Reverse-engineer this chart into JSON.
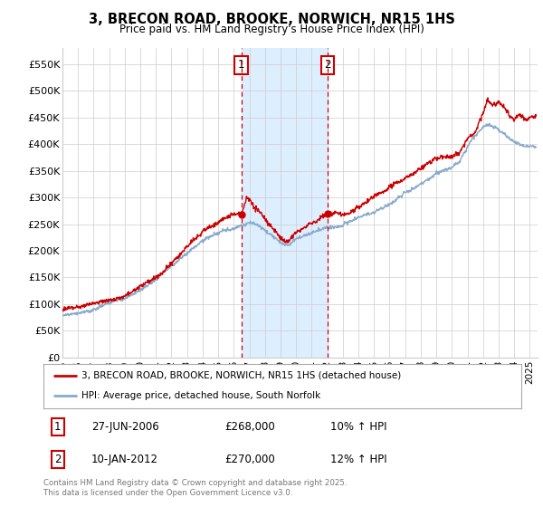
{
  "title": "3, BRECON ROAD, BROOKE, NORWICH, NR15 1HS",
  "subtitle": "Price paid vs. HM Land Registry's House Price Index (HPI)",
  "xlim_start": 1995.0,
  "xlim_end": 2025.5,
  "ylim": [
    0,
    580000
  ],
  "yticks": [
    0,
    50000,
    100000,
    150000,
    200000,
    250000,
    300000,
    350000,
    400000,
    450000,
    500000,
    550000
  ],
  "ytick_labels": [
    "£0",
    "£50K",
    "£100K",
    "£150K",
    "£200K",
    "£250K",
    "£300K",
    "£350K",
    "£400K",
    "£450K",
    "£500K",
    "£550K"
  ],
  "xtick_years": [
    1995,
    1996,
    1997,
    1998,
    1999,
    2000,
    2001,
    2002,
    2003,
    2004,
    2005,
    2006,
    2007,
    2008,
    2009,
    2010,
    2011,
    2012,
    2013,
    2014,
    2015,
    2016,
    2017,
    2018,
    2019,
    2020,
    2021,
    2022,
    2023,
    2024,
    2025
  ],
  "purchase1_x": 2006.49,
  "purchase1_y": 268000,
  "purchase1_label": "1",
  "purchase2_x": 2012.03,
  "purchase2_y": 270000,
  "purchase2_label": "2",
  "shaded_region_x1": 2006.49,
  "shaded_region_x2": 2012.03,
  "legend_line1": "3, BRECON ROAD, BROOKE, NORWICH, NR15 1HS (detached house)",
  "legend_line2": "HPI: Average price, detached house, South Norfolk",
  "annotation1_date": "27-JUN-2006",
  "annotation1_price": "£268,000",
  "annotation1_hpi": "10% ↑ HPI",
  "annotation2_date": "10-JAN-2012",
  "annotation2_price": "£270,000",
  "annotation2_hpi": "12% ↑ HPI",
  "footer": "Contains HM Land Registry data © Crown copyright and database right 2025.\nThis data is licensed under the Open Government Licence v3.0.",
  "red_color": "#cc0000",
  "blue_color": "#88aacc",
  "shaded_color": "#ddeeff",
  "background_color": "#ffffff",
  "grid_color": "#cccccc"
}
